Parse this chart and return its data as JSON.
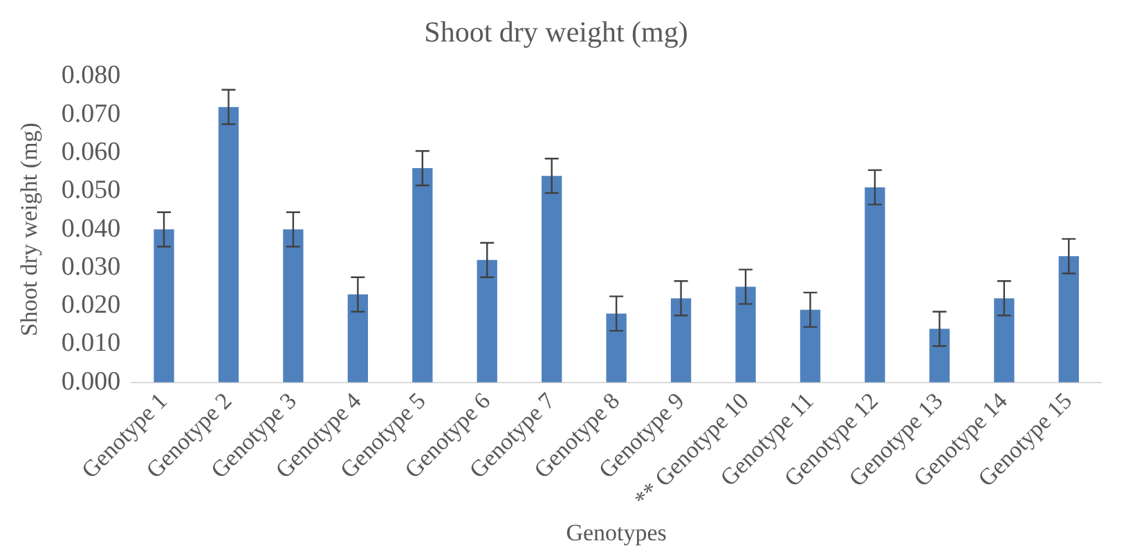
{
  "chart_data": {
    "type": "bar",
    "title": "Shoot dry weight (mg)",
    "xlabel": "Genotypes",
    "ylabel": "Shoot dry weight (mg)",
    "categories": [
      "Genotype 1",
      "Genotype 2",
      "Genotype 3",
      "Genotype 4",
      "Genotype 5",
      "Genotype 6",
      "Genotype 7",
      "Genotype 8",
      "Genotype 9",
      "** Genotype 10",
      "Genotype 11",
      "Genotype 12",
      "Genotype 13",
      "Genotype 14",
      "Genotype 15"
    ],
    "values": [
      0.04,
      0.072,
      0.04,
      0.023,
      0.056,
      0.032,
      0.054,
      0.018,
      0.022,
      0.025,
      0.019,
      0.051,
      0.014,
      0.022,
      0.033
    ],
    "errors": [
      0.0045,
      0.0045,
      0.0045,
      0.0045,
      0.0045,
      0.0045,
      0.0045,
      0.0045,
      0.0045,
      0.0045,
      0.0045,
      0.0045,
      0.0045,
      0.0045,
      0.0045
    ],
    "color": "#4f81bd",
    "ylim": [
      0,
      0.08
    ],
    "yticks": [
      {
        "value": 0,
        "label": "0.000"
      },
      {
        "value": 0.01,
        "label": "0.010"
      },
      {
        "value": 0.02,
        "label": "0.020"
      },
      {
        "value": 0.03,
        "label": "0.030"
      },
      {
        "value": 0.04,
        "label": "0.040"
      },
      {
        "value": 0.05,
        "label": "0.050"
      },
      {
        "value": 0.06,
        "label": "0.060"
      },
      {
        "value": 0.07,
        "label": "0.070"
      },
      {
        "value": 0.08,
        "label": "0.080"
      }
    ],
    "grid": false,
    "legend": false
  }
}
